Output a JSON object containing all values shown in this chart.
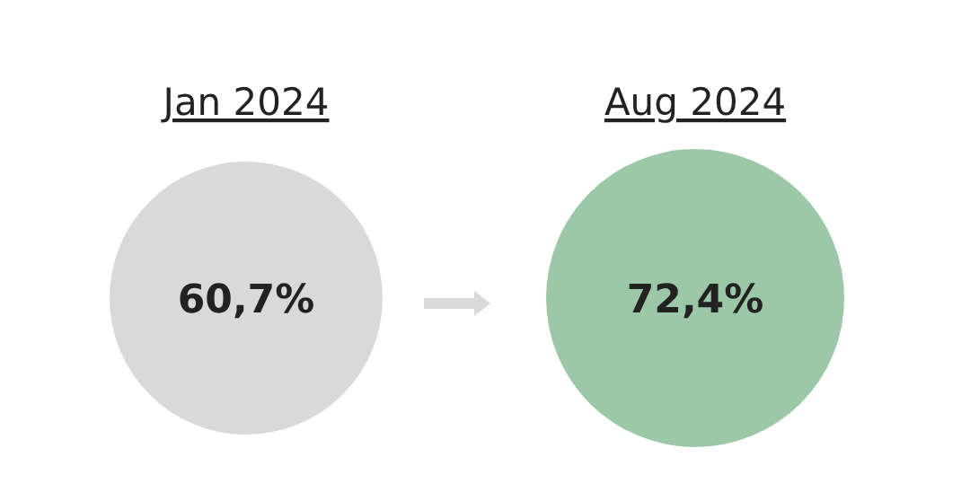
{
  "chart_data": {
    "type": "other",
    "categories": [
      "Jan 2024",
      "Aug 2024"
    ],
    "values": [
      60.7,
      72.4
    ],
    "value_labels": [
      "60,7%",
      "72,4%"
    ],
    "colors": [
      "#d9d9d9",
      "#9dc8a8"
    ]
  }
}
